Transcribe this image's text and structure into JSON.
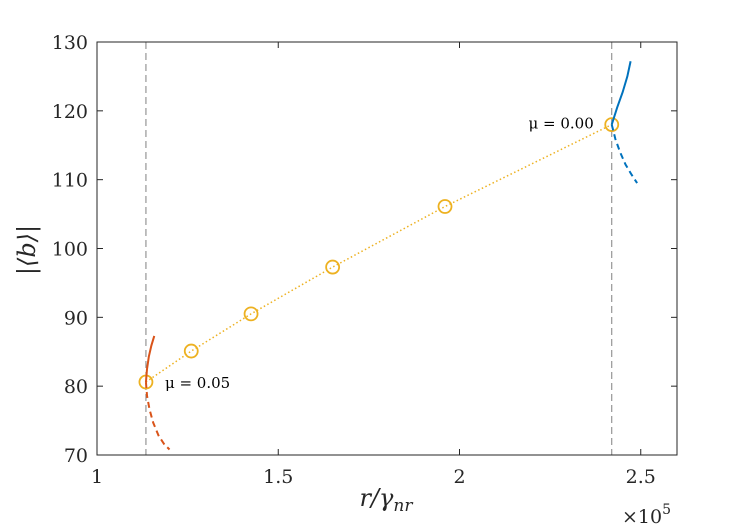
{
  "chart_data": {
    "type": "line",
    "xlabel": "r/γ",
    "xlabel_sub": "nr",
    "ylabel": "|⟨b⟩|",
    "x_multiplier_base": "×10",
    "x_multiplier_exp": "5",
    "xlim": [
      1,
      2.6
    ],
    "ylim": [
      70,
      130
    ],
    "x_ticks": [
      1,
      1.5,
      2,
      2.5
    ],
    "x_tick_labels": [
      "1",
      "1.5",
      "2",
      "2.5"
    ],
    "y_ticks": [
      70,
      80,
      90,
      100,
      110,
      120,
      130
    ],
    "y_tick_labels": [
      "70",
      "80",
      "90",
      "100",
      "110",
      "120",
      "130"
    ],
    "grid": false,
    "series": [
      {
        "style": "dotted-line-with-circle-markers",
        "color": "#EDB120",
        "x": [
          1.135,
          1.26,
          1.425,
          1.65,
          1.96,
          2.42
        ],
        "y": [
          80.6,
          85.1,
          90.5,
          97.3,
          106.1,
          118.0
        ]
      },
      {
        "style": "solid",
        "color": "#D95319",
        "x": [
          1.135,
          1.138,
          1.143,
          1.15,
          1.158
        ],
        "y": [
          80.6,
          82.5,
          84.3,
          85.9,
          87.3
        ]
      },
      {
        "style": "dashed",
        "color": "#D95319",
        "x": [
          1.135,
          1.138,
          1.145,
          1.155,
          1.17,
          1.185,
          1.2
        ],
        "y": [
          80.6,
          78.6,
          76.6,
          74.7,
          72.8,
          71.6,
          70.8
        ]
      },
      {
        "style": "solid",
        "color": "#0072BD",
        "x": [
          2.42,
          2.435,
          2.45,
          2.463,
          2.472
        ],
        "y": [
          118.0,
          120.5,
          122.7,
          125.0,
          127.2
        ]
      },
      {
        "style": "dashed",
        "color": "#0072BD",
        "x": [
          2.42,
          2.43,
          2.443,
          2.458,
          2.475,
          2.49
        ],
        "y": [
          118.0,
          115.9,
          114.0,
          112.2,
          110.7,
          109.5
        ]
      }
    ],
    "vlines": [
      1.135,
      2.42
    ],
    "annotations": [
      {
        "text": "μ = 0.05",
        "x": 1.135,
        "y": 80.6
      },
      {
        "text": "μ = 0.00",
        "x": 2.42,
        "y": 118.0
      }
    ]
  }
}
